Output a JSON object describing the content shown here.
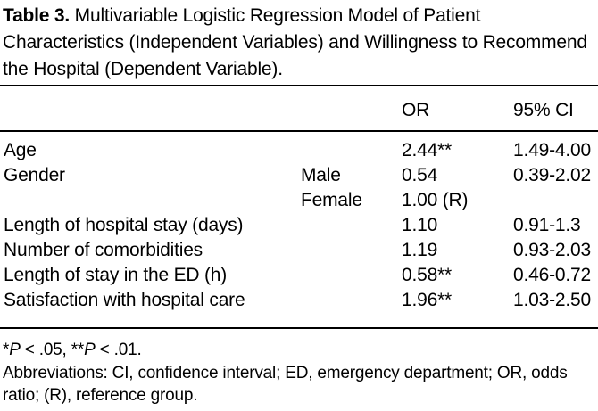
{
  "title": {
    "label": "Table 3.",
    "text": " Multivariable Logistic Regression Model of Patient Characteristics (Independent Variables) and Willingness to Recommend the Hospital (Dependent Variable)."
  },
  "table": {
    "columns": {
      "or": "OR",
      "ci": "95% CI"
    },
    "rows": [
      {
        "label": "Age",
        "subgroup": "",
        "or": "2.44**",
        "ci": "1.49-4.00"
      },
      {
        "label": "Gender",
        "subgroup": "Male",
        "or": "0.54",
        "ci": "0.39-2.02"
      },
      {
        "label": "",
        "subgroup": "Female",
        "or": "1.00 (R)",
        "ci": ""
      },
      {
        "label": "Length of hospital stay (days)",
        "subgroup": "",
        "or": "1.10",
        "ci": "0.91-1.3"
      },
      {
        "label": "Number of comorbidities",
        "subgroup": "",
        "or": "1.19",
        "ci": "0.93-2.03"
      },
      {
        "label": "Length of stay in the ED (h)",
        "subgroup": "",
        "or": "0.58**",
        "ci": "0.46-0.72"
      },
      {
        "label": "Satisfaction with hospital care",
        "subgroup": "",
        "or": "1.96**",
        "ci": "1.03-2.50"
      }
    ]
  },
  "footnotes": {
    "sig_star1": "*",
    "sig_p1": "P",
    "sig_mid": " < .05, **",
    "sig_p2": "P",
    "sig_end": " < .01.",
    "abbreviations": "Abbreviations: CI, confidence interval; ED, emergency department; OR, odds ratio; (R), reference group."
  },
  "colors": {
    "text": "#000000",
    "background": "#ffffff",
    "rule": "#000000"
  }
}
